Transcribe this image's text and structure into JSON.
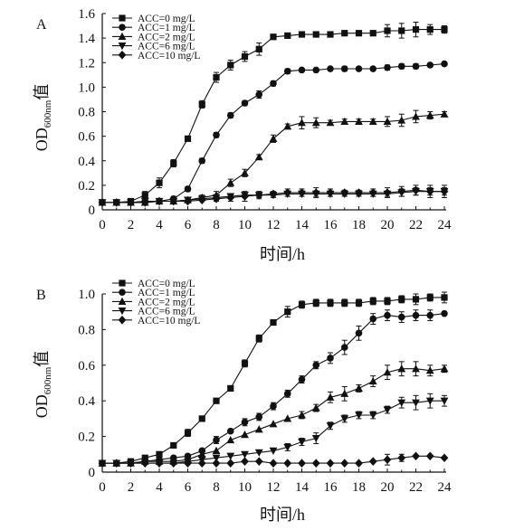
{
  "figure": {
    "panel_labels": [
      "A",
      "B"
    ]
  },
  "chart_data": [
    {
      "type": "line",
      "panel": "A",
      "xlabel": "时间/h",
      "ylabel_main": "OD",
      "ylabel_sub": "600nm",
      "ylabel_tail": "值",
      "xlim": [
        0,
        24
      ],
      "ylim": [
        0,
        1.6
      ],
      "xticks": [
        0,
        2,
        4,
        6,
        8,
        10,
        12,
        14,
        16,
        18,
        20,
        22,
        24
      ],
      "yticks": [
        0,
        0.2,
        0.4,
        0.6,
        0.8,
        1.0,
        1.2,
        1.4,
        1.6
      ],
      "ytick_labels": [
        "0",
        "0.2",
        "0.4",
        "0.6",
        "0.8",
        "1.0",
        "1.2",
        "1.4",
        "1.6"
      ],
      "legend_position": "top-left",
      "grid": false,
      "x": [
        0,
        1,
        2,
        3,
        4,
        5,
        6,
        7,
        8,
        9,
        10,
        11,
        12,
        13,
        14,
        15,
        16,
        17,
        18,
        19,
        20,
        21,
        22,
        23,
        24
      ],
      "series": [
        {
          "name": "ACC=0 mg/L",
          "marker": "square",
          "values": [
            0.06,
            0.06,
            0.07,
            0.12,
            0.22,
            0.38,
            0.58,
            0.86,
            1.08,
            1.18,
            1.25,
            1.31,
            1.41,
            1.42,
            1.43,
            1.43,
            1.43,
            1.44,
            1.44,
            1.44,
            1.46,
            1.46,
            1.47,
            1.47,
            1.47
          ],
          "err": [
            0.02,
            0.01,
            0.02,
            0.03,
            0.04,
            0.03,
            0.02,
            0.03,
            0.04,
            0.04,
            0.04,
            0.05,
            0.02,
            0.01,
            0.01,
            0.01,
            0.01,
            0.02,
            0.02,
            0.02,
            0.05,
            0.06,
            0.06,
            0.04,
            0.03
          ]
        },
        {
          "name": "ACC=1 mg/L",
          "marker": "circle",
          "values": [
            0.06,
            0.06,
            0.06,
            0.07,
            0.07,
            0.09,
            0.17,
            0.4,
            0.61,
            0.77,
            0.87,
            0.94,
            1.03,
            1.13,
            1.14,
            1.14,
            1.15,
            1.15,
            1.15,
            1.15,
            1.16,
            1.17,
            1.17,
            1.18,
            1.19
          ],
          "err": [
            0.01,
            0.01,
            0.01,
            0.01,
            0.01,
            0.02,
            0.02,
            0.02,
            0.02,
            0.02,
            0.02,
            0.03,
            0.02,
            0.02,
            0.01,
            0.01,
            0.01,
            0.02,
            0.01,
            0.01,
            0.02,
            0.02,
            0.02,
            0.01,
            0.01
          ]
        },
        {
          "name": "ACC=2 mg/L",
          "marker": "triangle-up",
          "values": [
            0.06,
            0.06,
            0.06,
            0.06,
            0.07,
            0.07,
            0.08,
            0.1,
            0.12,
            0.22,
            0.3,
            0.43,
            0.58,
            0.68,
            0.71,
            0.71,
            0.71,
            0.72,
            0.72,
            0.72,
            0.72,
            0.73,
            0.76,
            0.77,
            0.78
          ],
          "err": [
            0.01,
            0.01,
            0.01,
            0.01,
            0.01,
            0.01,
            0.01,
            0.02,
            0.03,
            0.03,
            0.03,
            0.02,
            0.03,
            0.02,
            0.05,
            0.04,
            0.02,
            0.02,
            0.02,
            0.02,
            0.04,
            0.05,
            0.05,
            0.03,
            0.02
          ]
        },
        {
          "name": "ACC=6 mg/L",
          "marker": "triangle-down",
          "values": [
            0.06,
            0.06,
            0.06,
            0.07,
            0.07,
            0.07,
            0.08,
            0.09,
            0.1,
            0.11,
            0.12,
            0.12,
            0.12,
            0.13,
            0.13,
            0.13,
            0.13,
            0.13,
            0.13,
            0.13,
            0.13,
            0.14,
            0.15,
            0.15,
            0.15
          ],
          "err": [
            0.01,
            0.01,
            0.01,
            0.01,
            0.01,
            0.01,
            0.01,
            0.01,
            0.02,
            0.02,
            0.02,
            0.02,
            0.02,
            0.02,
            0.02,
            0.02,
            0.02,
            0.02,
            0.02,
            0.02,
            0.02,
            0.03,
            0.03,
            0.03,
            0.03
          ]
        },
        {
          "name": "ACC=10 mg/L",
          "marker": "diamond",
          "values": [
            0.06,
            0.06,
            0.06,
            0.06,
            0.07,
            0.07,
            0.07,
            0.08,
            0.09,
            0.1,
            0.11,
            0.12,
            0.13,
            0.14,
            0.14,
            0.14,
            0.14,
            0.14,
            0.14,
            0.14,
            0.14,
            0.15,
            0.16,
            0.15,
            0.15
          ],
          "err": [
            0.01,
            0.01,
            0.01,
            0.01,
            0.01,
            0.01,
            0.01,
            0.01,
            0.02,
            0.03,
            0.04,
            0.03,
            0.02,
            0.03,
            0.03,
            0.04,
            0.03,
            0.02,
            0.02,
            0.03,
            0.04,
            0.04,
            0.04,
            0.05,
            0.05
          ]
        }
      ]
    },
    {
      "type": "line",
      "panel": "B",
      "xlabel": "时间/h",
      "ylabel_main": "OD",
      "ylabel_sub": "600nm",
      "ylabel_tail": "值",
      "xlim": [
        0,
        24
      ],
      "ylim": [
        0,
        1.0
      ],
      "xticks": [
        0,
        2,
        4,
        6,
        8,
        10,
        12,
        14,
        16,
        18,
        20,
        22,
        24
      ],
      "yticks": [
        0,
        0.2,
        0.4,
        0.6,
        0.8,
        1.0
      ],
      "ytick_labels": [
        "0",
        "0.2",
        "0.4",
        "0.6",
        "0.8",
        "1.0"
      ],
      "legend_position": "top-left",
      "grid": false,
      "x": [
        0,
        1,
        2,
        3,
        4,
        5,
        6,
        7,
        8,
        9,
        10,
        11,
        12,
        13,
        14,
        15,
        16,
        17,
        18,
        19,
        20,
        21,
        22,
        23,
        24
      ],
      "series": [
        {
          "name": "ACC=0 mg/L",
          "marker": "square",
          "values": [
            0.05,
            0.05,
            0.06,
            0.08,
            0.1,
            0.15,
            0.22,
            0.3,
            0.4,
            0.47,
            0.61,
            0.75,
            0.84,
            0.9,
            0.94,
            0.95,
            0.95,
            0.95,
            0.95,
            0.96,
            0.96,
            0.97,
            0.97,
            0.98,
            0.98
          ],
          "err": [
            0.01,
            0.01,
            0.01,
            0.01,
            0.01,
            0.01,
            0.02,
            0.01,
            0.01,
            0.01,
            0.02,
            0.02,
            0.01,
            0.03,
            0.02,
            0.02,
            0.02,
            0.02,
            0.02,
            0.02,
            0.02,
            0.02,
            0.03,
            0.02,
            0.03
          ]
        },
        {
          "name": "ACC=1 mg/L",
          "marker": "circle",
          "values": [
            0.05,
            0.05,
            0.05,
            0.06,
            0.07,
            0.08,
            0.09,
            0.12,
            0.18,
            0.23,
            0.28,
            0.31,
            0.37,
            0.44,
            0.52,
            0.6,
            0.64,
            0.7,
            0.78,
            0.86,
            0.88,
            0.87,
            0.88,
            0.88,
            0.89
          ],
          "err": [
            0.01,
            0.01,
            0.01,
            0.01,
            0.01,
            0.01,
            0.01,
            0.01,
            0.02,
            0.01,
            0.02,
            0.02,
            0.02,
            0.02,
            0.02,
            0.02,
            0.03,
            0.04,
            0.04,
            0.03,
            0.03,
            0.03,
            0.03,
            0.03,
            0.01
          ]
        },
        {
          "name": "ACC=2 mg/L",
          "marker": "triangle-up",
          "values": [
            0.05,
            0.05,
            0.05,
            0.06,
            0.06,
            0.06,
            0.07,
            0.1,
            0.12,
            0.18,
            0.21,
            0.24,
            0.27,
            0.3,
            0.32,
            0.36,
            0.42,
            0.44,
            0.47,
            0.51,
            0.56,
            0.58,
            0.58,
            0.57,
            0.58
          ],
          "err": [
            0.01,
            0.01,
            0.01,
            0.01,
            0.01,
            0.01,
            0.01,
            0.01,
            0.01,
            0.01,
            0.01,
            0.01,
            0.01,
            0.01,
            0.02,
            0.02,
            0.03,
            0.04,
            0.02,
            0.03,
            0.04,
            0.04,
            0.04,
            0.03,
            0.02
          ]
        },
        {
          "name": "ACC=6 mg/L",
          "marker": "triangle-down",
          "values": [
            0.05,
            0.05,
            0.05,
            0.05,
            0.05,
            0.05,
            0.06,
            0.07,
            0.08,
            0.09,
            0.1,
            0.11,
            0.12,
            0.14,
            0.17,
            0.19,
            0.26,
            0.3,
            0.32,
            0.32,
            0.35,
            0.39,
            0.39,
            0.4,
            0.4
          ],
          "err": [
            0.01,
            0.01,
            0.01,
            0.01,
            0.01,
            0.01,
            0.01,
            0.01,
            0.01,
            0.01,
            0.01,
            0.01,
            0.01,
            0.02,
            0.02,
            0.03,
            0.02,
            0.02,
            0.02,
            0.02,
            0.02,
            0.03,
            0.04,
            0.04,
            0.03
          ]
        },
        {
          "name": "ACC=10 mg/L",
          "marker": "diamond",
          "values": [
            0.05,
            0.05,
            0.05,
            0.05,
            0.05,
            0.05,
            0.05,
            0.05,
            0.05,
            0.05,
            0.06,
            0.06,
            0.05,
            0.05,
            0.05,
            0.05,
            0.05,
            0.05,
            0.05,
            0.06,
            0.07,
            0.08,
            0.09,
            0.09,
            0.08
          ],
          "err": [
            0.01,
            0.01,
            0.01,
            0.01,
            0.01,
            0.01,
            0.01,
            0.01,
            0.01,
            0.01,
            0.01,
            0.01,
            0.01,
            0.01,
            0.01,
            0.01,
            0.01,
            0.01,
            0.01,
            0.01,
            0.03,
            0.02,
            0.01,
            0.01,
            0.01
          ]
        }
      ]
    }
  ]
}
